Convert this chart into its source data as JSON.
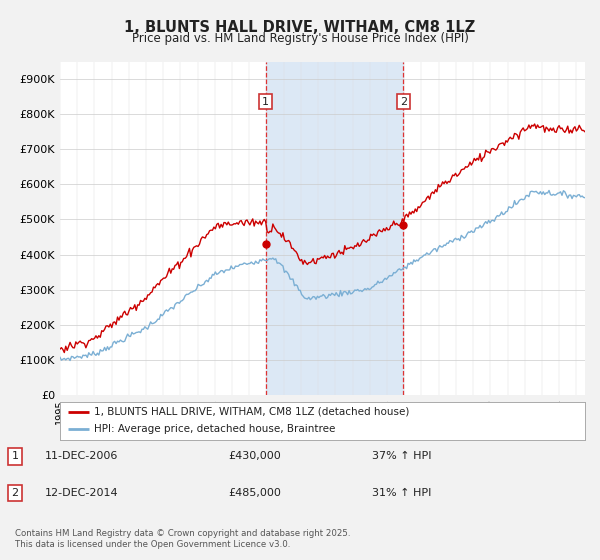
{
  "title": "1, BLUNTS HALL DRIVE, WITHAM, CM8 1LZ",
  "subtitle": "Price paid vs. HM Land Registry's House Price Index (HPI)",
  "background_color": "#f2f2f2",
  "plot_background": "#ffffff",
  "red_color": "#cc0000",
  "blue_color": "#7bafd4",
  "highlight_fill": "#dce8f5",
  "sale1_year": 2006.95,
  "sale2_year": 2014.95,
  "sale1_price": 430000,
  "sale2_price": 485000,
  "ylim_min": 0,
  "ylim_max": 950000,
  "legend_line1": "1, BLUNTS HALL DRIVE, WITHAM, CM8 1LZ (detached house)",
  "legend_line2": "HPI: Average price, detached house, Braintree",
  "note1_date": "11-DEC-2006",
  "note1_price": "£430,000",
  "note1_hpi": "37% ↑ HPI",
  "note2_date": "12-DEC-2014",
  "note2_price": "£485,000",
  "note2_hpi": "31% ↑ HPI",
  "footer": "Contains HM Land Registry data © Crown copyright and database right 2025.\nThis data is licensed under the Open Government Licence v3.0."
}
